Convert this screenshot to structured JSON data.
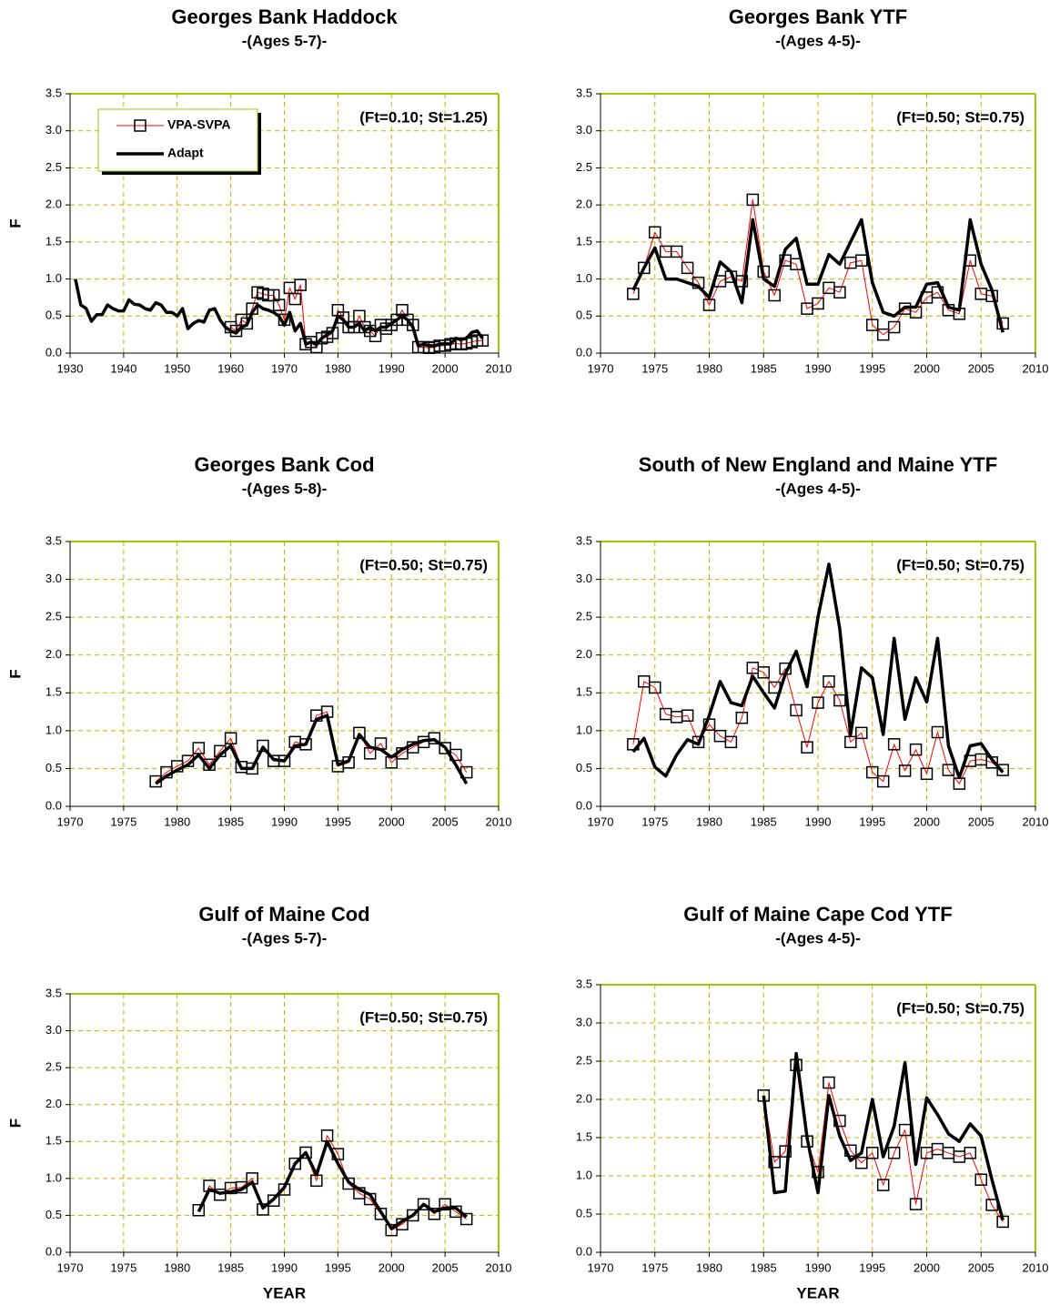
{
  "chart_data": [
    {
      "type": "line",
      "title": "Georges Bank Haddock",
      "subtitle": "-(Ages 5-7)-",
      "annotation": "(Ft=0.10; St=1.25)",
      "ylabel": "F",
      "legend": "upper left",
      "grid": true,
      "x": [
        1931,
        1932,
        1933,
        1934,
        1935,
        1936,
        1937,
        1938,
        1939,
        1940,
        1941,
        1942,
        1943,
        1944,
        1945,
        1946,
        1947,
        1948,
        1949,
        1950,
        1951,
        1952,
        1953,
        1954,
        1955,
        1956,
        1957,
        1958,
        1959,
        1960,
        1961,
        1962,
        1963,
        1964,
        1965,
        1966,
        1967,
        1968,
        1969,
        1970,
        1971,
        1972,
        1973,
        1974,
        1975,
        1976,
        1977,
        1978,
        1979,
        1980,
        1981,
        1982,
        1983,
        1984,
        1985,
        1986,
        1987,
        1988,
        1989,
        1990,
        1991,
        1992,
        1993,
        1994,
        1995,
        1996,
        1997,
        1998,
        1999,
        2000,
        2001,
        2002,
        2003,
        2004,
        2005,
        2006,
        2007
      ],
      "series": [
        {
          "name": "VPA-SVPA",
          "color": "#ff0000",
          "values": [
            null,
            null,
            null,
            null,
            null,
            null,
            null,
            null,
            null,
            null,
            null,
            null,
            null,
            null,
            null,
            null,
            null,
            null,
            null,
            null,
            null,
            null,
            null,
            null,
            null,
            null,
            null,
            null,
            null,
            0.35,
            0.3,
            0.45,
            0.4,
            0.6,
            0.82,
            0.8,
            0.78,
            0.78,
            0.65,
            0.45,
            0.88,
            0.73,
            0.92,
            0.12,
            0.15,
            0.08,
            0.2,
            0.22,
            0.27,
            0.58,
            0.48,
            0.35,
            0.35,
            0.5,
            0.35,
            0.3,
            0.23,
            0.38,
            0.33,
            0.38,
            0.45,
            0.58,
            0.45,
            0.38,
            0.08,
            0.08,
            0.07,
            0.08,
            0.1,
            0.1,
            0.12,
            0.13,
            0.12,
            0.13,
            0.15,
            0.17,
            0.17
          ]
        },
        {
          "name": "Adapt",
          "color": "#000000",
          "values": [
            1.0,
            0.65,
            0.6,
            0.43,
            0.52,
            0.52,
            0.65,
            0.6,
            0.57,
            0.57,
            0.72,
            0.66,
            0.65,
            0.6,
            0.58,
            0.68,
            0.65,
            0.55,
            0.55,
            0.5,
            0.6,
            0.33,
            0.4,
            0.44,
            0.42,
            0.58,
            0.6,
            0.45,
            0.35,
            0.3,
            0.27,
            0.35,
            0.38,
            0.55,
            0.65,
            0.6,
            0.58,
            0.55,
            0.5,
            0.38,
            0.55,
            0.3,
            0.4,
            0.12,
            0.15,
            0.12,
            0.2,
            0.25,
            0.3,
            0.5,
            0.45,
            0.35,
            0.35,
            0.4,
            0.3,
            0.35,
            0.3,
            0.35,
            0.35,
            0.4,
            0.45,
            0.5,
            0.45,
            0.35,
            0.1,
            0.12,
            0.1,
            0.1,
            0.12,
            0.13,
            0.12,
            0.2,
            0.18,
            0.2,
            0.28,
            0.3,
            0.2
          ]
        }
      ],
      "xlim": [
        1930,
        2010
      ],
      "xticks": [
        1930,
        1940,
        1950,
        1960,
        1970,
        1980,
        1990,
        2000,
        2010
      ],
      "ylim": [
        0,
        3.5
      ],
      "yticks": [
        {
          "value": 0,
          "label": "0.0"
        },
        0.5,
        {
          "value": 1,
          "label": "1.0"
        },
        1.5,
        {
          "value": 2,
          "label": "2.0"
        },
        2.5,
        {
          "value": 3,
          "label": "3.0"
        },
        3.5
      ]
    },
    {
      "type": "line",
      "title": "Georges Bank YTF",
      "subtitle": "-(Ages 4-5)-",
      "annotation": "(Ft=0.50; St=0.75)",
      "grid": true,
      "x": [
        1973,
        1974,
        1975,
        1976,
        1977,
        1978,
        1979,
        1980,
        1981,
        1982,
        1983,
        1984,
        1985,
        1986,
        1987,
        1988,
        1989,
        1990,
        1991,
        1992,
        1993,
        1994,
        1995,
        1996,
        1997,
        1998,
        1999,
        2000,
        2001,
        2002,
        2003,
        2004,
        2005,
        2006,
        2007
      ],
      "series": [
        {
          "name": "VPA-SVPA",
          "color": "#ff0000",
          "values": [
            0.8,
            1.15,
            1.63,
            1.37,
            1.37,
            1.15,
            0.95,
            0.65,
            0.97,
            1.03,
            0.97,
            2.07,
            1.1,
            0.78,
            1.25,
            1.2,
            0.6,
            0.67,
            0.88,
            0.82,
            1.22,
            1.25,
            0.38,
            0.25,
            0.35,
            0.6,
            0.55,
            0.75,
            0.82,
            0.58,
            0.53,
            1.25,
            0.8,
            0.77,
            0.4
          ]
        },
        {
          "name": "Adapt",
          "color": "#000000",
          "values": [
            0.85,
            1.15,
            1.42,
            1.0,
            1.0,
            0.95,
            0.9,
            0.75,
            1.23,
            1.1,
            0.68,
            1.8,
            1.0,
            0.9,
            1.4,
            1.55,
            0.93,
            0.93,
            1.33,
            1.2,
            1.5,
            1.8,
            0.95,
            0.55,
            0.5,
            0.62,
            0.62,
            0.93,
            0.95,
            0.62,
            0.58,
            1.8,
            1.2,
            0.85,
            0.28
          ]
        }
      ],
      "xlim": [
        1970,
        2010
      ],
      "xticks": [
        1970,
        1975,
        1980,
        1985,
        1990,
        1995,
        2000,
        2005,
        2010
      ],
      "ylim": [
        0,
        3.5
      ],
      "yticks": [
        {
          "value": 0,
          "label": "0.0"
        },
        0.5,
        {
          "value": 1,
          "label": "1.0"
        },
        1.5,
        {
          "value": 2,
          "label": "2.0"
        },
        2.5,
        {
          "value": 3,
          "label": "3.0"
        },
        3.5
      ]
    },
    {
      "type": "line",
      "title": "Georges Bank Cod",
      "subtitle": "-(Ages 5-8)-",
      "annotation": "(Ft=0.50; St=0.75)",
      "ylabel": "F",
      "grid": true,
      "x": [
        1978,
        1979,
        1980,
        1981,
        1982,
        1983,
        1984,
        1985,
        1986,
        1987,
        1988,
        1989,
        1990,
        1991,
        1992,
        1993,
        1994,
        1995,
        1996,
        1997,
        1998,
        1999,
        2000,
        2001,
        2002,
        2003,
        2004,
        2005,
        2006,
        2007
      ],
      "series": [
        {
          "name": "VPA-SVPA",
          "color": "#ff0000",
          "values": [
            0.33,
            0.45,
            0.53,
            0.6,
            0.77,
            0.55,
            0.73,
            0.9,
            0.52,
            0.5,
            0.8,
            0.6,
            0.6,
            0.85,
            0.82,
            1.2,
            1.25,
            0.53,
            0.58,
            0.97,
            0.7,
            0.83,
            0.58,
            0.7,
            0.78,
            0.85,
            0.9,
            0.77,
            0.68,
            0.45
          ]
        },
        {
          "name": "Adapt",
          "color": "#000000",
          "values": [
            0.3,
            0.4,
            0.48,
            0.55,
            0.68,
            0.5,
            0.68,
            0.8,
            0.5,
            0.5,
            0.78,
            0.62,
            0.6,
            0.8,
            0.82,
            1.15,
            1.2,
            0.55,
            0.6,
            0.95,
            0.78,
            0.75,
            0.65,
            0.75,
            0.82,
            0.87,
            0.88,
            0.78,
            0.55,
            0.3
          ]
        }
      ],
      "xlim": [
        1970,
        2010
      ],
      "xticks": [
        1970,
        1975,
        1980,
        1985,
        1990,
        1995,
        2000,
        2005,
        2010
      ],
      "ylim": [
        0,
        3.5
      ],
      "yticks": [
        {
          "value": 0,
          "label": "0.0"
        },
        0.5,
        {
          "value": 1,
          "label": "1.0"
        },
        1.5,
        {
          "value": 2,
          "label": "2.0"
        },
        2.5,
        {
          "value": 3,
          "label": "3.0"
        },
        3.5
      ]
    },
    {
      "type": "line",
      "title": "South of New England and Maine YTF",
      "subtitle": "-(Ages 4-5)-",
      "annotation": "(Ft=0.50; St=0.75)",
      "grid": true,
      "x": [
        1973,
        1974,
        1975,
        1976,
        1977,
        1978,
        1979,
        1980,
        1981,
        1982,
        1983,
        1984,
        1985,
        1986,
        1987,
        1988,
        1989,
        1990,
        1991,
        1992,
        1993,
        1994,
        1995,
        1996,
        1997,
        1998,
        1999,
        2000,
        2001,
        2002,
        2003,
        2004,
        2005,
        2006,
        2007
      ],
      "series": [
        {
          "name": "VPA-SVPA",
          "color": "#ff0000",
          "values": [
            0.82,
            1.65,
            1.57,
            1.22,
            1.18,
            1.2,
            0.85,
            1.08,
            0.93,
            0.85,
            1.17,
            1.83,
            1.77,
            1.57,
            1.82,
            1.27,
            0.78,
            1.37,
            1.65,
            1.4,
            0.85,
            0.97,
            0.45,
            0.33,
            0.82,
            0.47,
            0.75,
            0.43,
            0.98,
            0.48,
            0.3,
            0.6,
            0.62,
            0.58,
            0.48
          ]
        },
        {
          "name": "Adapt",
          "color": "#000000",
          "values": [
            0.72,
            0.9,
            0.52,
            0.4,
            0.68,
            0.88,
            0.82,
            1.2,
            1.65,
            1.37,
            1.33,
            1.72,
            1.5,
            1.3,
            1.75,
            2.05,
            1.58,
            2.5,
            3.2,
            2.35,
            0.95,
            1.83,
            1.7,
            0.95,
            2.22,
            1.15,
            1.7,
            1.38,
            2.22,
            0.8,
            0.38,
            0.8,
            0.83,
            0.62,
            0.45
          ]
        }
      ],
      "xlim": [
        1970,
        2010
      ],
      "xticks": [
        1970,
        1975,
        1980,
        1985,
        1990,
        1995,
        2000,
        2005,
        2010
      ],
      "ylim": [
        0,
        3.5
      ],
      "yticks": [
        {
          "value": 0,
          "label": "0.0"
        },
        0.5,
        {
          "value": 1,
          "label": "1.0"
        },
        1.5,
        {
          "value": 2,
          "label": "2.0"
        },
        2.5,
        {
          "value": 3,
          "label": "3.0"
        },
        3.5
      ]
    },
    {
      "type": "line",
      "title": "Gulf of Maine Cod",
      "subtitle": "-(Ages 5-7)-",
      "annotation": "(Ft=0.50; St=0.75)",
      "ylabel": "F",
      "xlabel": "YEAR",
      "grid": true,
      "x": [
        1982,
        1983,
        1984,
        1985,
        1986,
        1987,
        1988,
        1989,
        1990,
        1991,
        1992,
        1993,
        1994,
        1995,
        1996,
        1997,
        1998,
        1999,
        2000,
        2001,
        2002,
        2003,
        2004,
        2005,
        2006,
        2007
      ],
      "series": [
        {
          "name": "VPA-SVPA",
          "color": "#ff0000",
          "values": [
            0.57,
            0.9,
            0.78,
            0.87,
            0.88,
            1.0,
            0.58,
            0.7,
            0.85,
            1.2,
            1.35,
            0.97,
            1.58,
            1.33,
            0.93,
            0.8,
            0.72,
            0.52,
            0.3,
            0.38,
            0.5,
            0.65,
            0.52,
            0.65,
            0.55,
            0.45
          ]
        },
        {
          "name": "Adapt",
          "color": "#000000",
          "values": [
            0.55,
            0.85,
            0.8,
            0.82,
            0.85,
            0.95,
            0.6,
            0.72,
            0.88,
            1.2,
            1.35,
            1.05,
            1.5,
            1.2,
            0.95,
            0.85,
            0.78,
            0.55,
            0.32,
            0.42,
            0.5,
            0.65,
            0.55,
            0.6,
            0.6,
            0.48
          ]
        }
      ],
      "xlim": [
        1970,
        2010
      ],
      "xticks": [
        1970,
        1975,
        1980,
        1985,
        1990,
        1995,
        2000,
        2005,
        2010
      ],
      "ylim": [
        0,
        3.5
      ],
      "yticks": [
        {
          "value": 0,
          "label": "0.0"
        },
        0.5,
        {
          "value": 1,
          "label": "1.0"
        },
        1.5,
        {
          "value": 2,
          "label": "2.0"
        },
        2.5,
        {
          "value": 3,
          "label": "3.0"
        },
        3.5
      ]
    },
    {
      "type": "line",
      "title": "Gulf of Maine Cape Cod YTF",
      "subtitle": "-(Ages 4-5)-",
      "annotation": "(Ft=0.50; St=0.75)",
      "xlabel": "YEAR",
      "grid": true,
      "x": [
        1985,
        1986,
        1987,
        1988,
        1989,
        1990,
        1991,
        1992,
        1993,
        1994,
        1995,
        1996,
        1997,
        1998,
        1999,
        2000,
        2001,
        2002,
        2003,
        2004,
        2005,
        2006,
        2007
      ],
      "series": [
        {
          "name": "VPA-SVPA",
          "color": "#ff0000",
          "values": [
            2.05,
            1.18,
            1.32,
            2.45,
            1.45,
            1.05,
            2.22,
            1.72,
            1.33,
            1.17,
            1.3,
            0.88,
            1.3,
            1.6,
            0.63,
            1.3,
            1.35,
            1.3,
            1.25,
            1.3,
            0.95,
            0.62,
            0.4
          ]
        },
        {
          "name": "Adapt",
          "color": "#000000",
          "values": [
            2.05,
            0.78,
            0.8,
            2.6,
            1.5,
            0.78,
            2.05,
            1.52,
            1.2,
            1.3,
            2.0,
            1.25,
            1.65,
            2.48,
            1.15,
            2.02,
            1.8,
            1.55,
            1.45,
            1.68,
            1.52,
            0.95,
            0.42
          ]
        }
      ],
      "xlim": [
        1970,
        2010
      ],
      "xticks": [
        1970,
        1975,
        1980,
        1985,
        1990,
        1995,
        2000,
        2005,
        2010
      ],
      "ylim": [
        0,
        3.5
      ],
      "yticks": [
        {
          "value": 0,
          "label": "0.0"
        },
        0.5,
        {
          "value": 1,
          "label": "1.0"
        },
        1.5,
        {
          "value": 2,
          "label": "2.0"
        },
        2.5,
        {
          "value": 3,
          "label": "3.0"
        },
        3.5
      ]
    }
  ]
}
